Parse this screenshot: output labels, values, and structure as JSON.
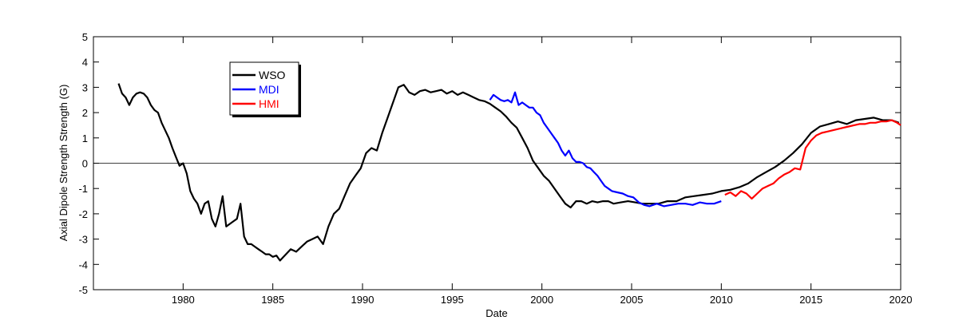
{
  "chart_data": {
    "type": "line",
    "title": "",
    "xlabel": "Date",
    "ylabel": "Axial Dipole Strength Strength (G)",
    "xlim": [
      1975,
      2020
    ],
    "ylim": [
      -5,
      5
    ],
    "x_ticks": [
      1980,
      1985,
      1990,
      1995,
      2000,
      2005,
      2010,
      2015,
      2020
    ],
    "y_ticks": [
      5,
      4,
      3,
      2,
      1,
      0,
      -1,
      -2,
      -3,
      -4,
      -5
    ],
    "zero_line": true,
    "grid": false,
    "legend_position": "top-left",
    "series": [
      {
        "name": "WSO",
        "color": "#000000",
        "x": [
          1976.4,
          1976.6,
          1976.8,
          1977.0,
          1977.2,
          1977.4,
          1977.6,
          1977.8,
          1978.0,
          1978.2,
          1978.4,
          1978.6,
          1978.8,
          1979.0,
          1979.2,
          1979.4,
          1979.6,
          1979.8,
          1980.0,
          1980.2,
          1980.4,
          1980.6,
          1980.8,
          1981.0,
          1981.2,
          1981.4,
          1981.6,
          1981.8,
          1982.0,
          1982.2,
          1982.4,
          1982.6,
          1982.8,
          1983.0,
          1983.2,
          1983.4,
          1983.6,
          1983.8,
          1984.0,
          1984.2,
          1984.4,
          1984.6,
          1984.8,
          1985.0,
          1985.2,
          1985.4,
          1985.6,
          1985.8,
          1986.0,
          1986.3,
          1986.6,
          1986.9,
          1987.2,
          1987.5,
          1987.8,
          1988.1,
          1988.4,
          1988.7,
          1989.0,
          1989.3,
          1989.6,
          1989.9,
          1990.2,
          1990.5,
          1990.8,
          1991.1,
          1991.4,
          1991.7,
          1992.0,
          1992.3,
          1992.6,
          1992.9,
          1993.2,
          1993.5,
          1993.8,
          1994.1,
          1994.4,
          1994.7,
          1995.0,
          1995.3,
          1995.6,
          1995.9,
          1996.2,
          1996.5,
          1996.8,
          1997.1,
          1997.4,
          1997.7,
          1998.0,
          1998.3,
          1998.6,
          1998.9,
          1999.2,
          1999.5,
          1999.8,
          2000.1,
          2000.4,
          2000.7,
          2001.0,
          2001.3,
          2001.6,
          2001.9,
          2002.2,
          2002.5,
          2002.8,
          2003.1,
          2003.4,
          2003.7,
          2004.0,
          2004.4,
          2004.8,
          2005.2,
          2005.6,
          2006.0,
          2006.5,
          2007.0,
          2007.5,
          2008.0,
          2008.5,
          2009.0,
          2009.5,
          2010.0,
          2010.5,
          2011.0,
          2011.5,
          2012.0,
          2012.5,
          2013.0,
          2013.5,
          2014.0,
          2014.5,
          2015.0,
          2015.5,
          2016.0,
          2016.5,
          2017.0,
          2017.5,
          2018.0,
          2018.5,
          2019.0,
          2019.5,
          2019.9
        ],
        "y": [
          3.15,
          2.75,
          2.6,
          2.3,
          2.6,
          2.75,
          2.8,
          2.75,
          2.6,
          2.3,
          2.1,
          2.0,
          1.6,
          1.3,
          1.0,
          0.6,
          0.25,
          -0.1,
          0.0,
          -0.4,
          -1.1,
          -1.4,
          -1.6,
          -2.0,
          -1.6,
          -1.5,
          -2.2,
          -2.5,
          -2.0,
          -1.3,
          -2.5,
          -2.4,
          -2.3,
          -2.2,
          -1.6,
          -2.9,
          -3.2,
          -3.2,
          -3.3,
          -3.4,
          -3.5,
          -3.6,
          -3.6,
          -3.7,
          -3.65,
          -3.85,
          -3.7,
          -3.55,
          -3.4,
          -3.5,
          -3.3,
          -3.1,
          -3.0,
          -2.9,
          -3.2,
          -2.5,
          -2.0,
          -1.8,
          -1.3,
          -0.8,
          -0.5,
          -0.2,
          0.4,
          0.6,
          0.5,
          1.2,
          1.8,
          2.4,
          3.0,
          3.1,
          2.8,
          2.7,
          2.85,
          2.9,
          2.8,
          2.85,
          2.9,
          2.75,
          2.85,
          2.7,
          2.8,
          2.7,
          2.6,
          2.5,
          2.45,
          2.35,
          2.2,
          2.05,
          1.85,
          1.6,
          1.4,
          1.0,
          0.6,
          0.1,
          -0.2,
          -0.5,
          -0.7,
          -1.0,
          -1.3,
          -1.6,
          -1.75,
          -1.5,
          -1.5,
          -1.6,
          -1.5,
          -1.55,
          -1.5,
          -1.5,
          -1.6,
          -1.55,
          -1.5,
          -1.55,
          -1.6,
          -1.6,
          -1.6,
          -1.5,
          -1.5,
          -1.35,
          -1.3,
          -1.25,
          -1.2,
          -1.1,
          -1.05,
          -0.95,
          -0.8,
          -0.55,
          -0.35,
          -0.15,
          0.1,
          0.4,
          0.75,
          1.2,
          1.45,
          1.55,
          1.65,
          1.55,
          1.7,
          1.75,
          1.8,
          1.7,
          1.7,
          1.6
        ]
      },
      {
        "name": "MDI",
        "color": "#0000ff",
        "x": [
          1997.1,
          1997.3,
          1997.5,
          1997.7,
          1997.9,
          1998.1,
          1998.3,
          1998.5,
          1998.7,
          1998.9,
          1999.1,
          1999.3,
          1999.5,
          1999.7,
          1999.9,
          2000.1,
          2000.3,
          2000.5,
          2000.7,
          2000.9,
          2001.1,
          2001.3,
          2001.5,
          2001.7,
          2001.9,
          2002.1,
          2002.3,
          2002.5,
          2002.7,
          2002.9,
          2003.1,
          2003.3,
          2003.5,
          2003.7,
          2003.9,
          2004.2,
          2004.5,
          2004.8,
          2005.1,
          2005.4,
          2005.7,
          2006.0,
          2006.4,
          2006.8,
          2007.2,
          2007.6,
          2008.0,
          2008.4,
          2008.8,
          2009.2,
          2009.6,
          2010.0
        ],
        "y": [
          2.5,
          2.7,
          2.6,
          2.5,
          2.45,
          2.5,
          2.4,
          2.8,
          2.3,
          2.4,
          2.3,
          2.2,
          2.2,
          2.0,
          1.9,
          1.6,
          1.4,
          1.2,
          1.0,
          0.8,
          0.5,
          0.3,
          0.5,
          0.2,
          0.05,
          0.05,
          0.0,
          -0.15,
          -0.2,
          -0.35,
          -0.5,
          -0.7,
          -0.9,
          -1.0,
          -1.1,
          -1.15,
          -1.2,
          -1.3,
          -1.35,
          -1.55,
          -1.65,
          -1.7,
          -1.6,
          -1.7,
          -1.65,
          -1.6,
          -1.6,
          -1.65,
          -1.55,
          -1.6,
          -1.6,
          -1.5
        ]
      },
      {
        "name": "HMI",
        "color": "#ff0000",
        "x": [
          2010.2,
          2010.5,
          2010.8,
          2011.1,
          2011.4,
          2011.7,
          2012.0,
          2012.3,
          2012.6,
          2012.9,
          2013.2,
          2013.5,
          2013.8,
          2014.1,
          2014.4,
          2014.7,
          2015.0,
          2015.3,
          2015.6,
          2015.9,
          2016.2,
          2016.5,
          2016.8,
          2017.1,
          2017.4,
          2017.7,
          2018.0,
          2018.3,
          2018.6,
          2018.9,
          2019.2,
          2019.5,
          2019.8,
          2020.0
        ],
        "y": [
          -1.25,
          -1.15,
          -1.3,
          -1.1,
          -1.2,
          -1.4,
          -1.2,
          -1.0,
          -0.9,
          -0.8,
          -0.6,
          -0.45,
          -0.35,
          -0.2,
          -0.25,
          0.6,
          0.9,
          1.1,
          1.2,
          1.25,
          1.3,
          1.35,
          1.4,
          1.45,
          1.5,
          1.55,
          1.55,
          1.6,
          1.6,
          1.65,
          1.65,
          1.7,
          1.6,
          1.5
        ]
      }
    ]
  }
}
